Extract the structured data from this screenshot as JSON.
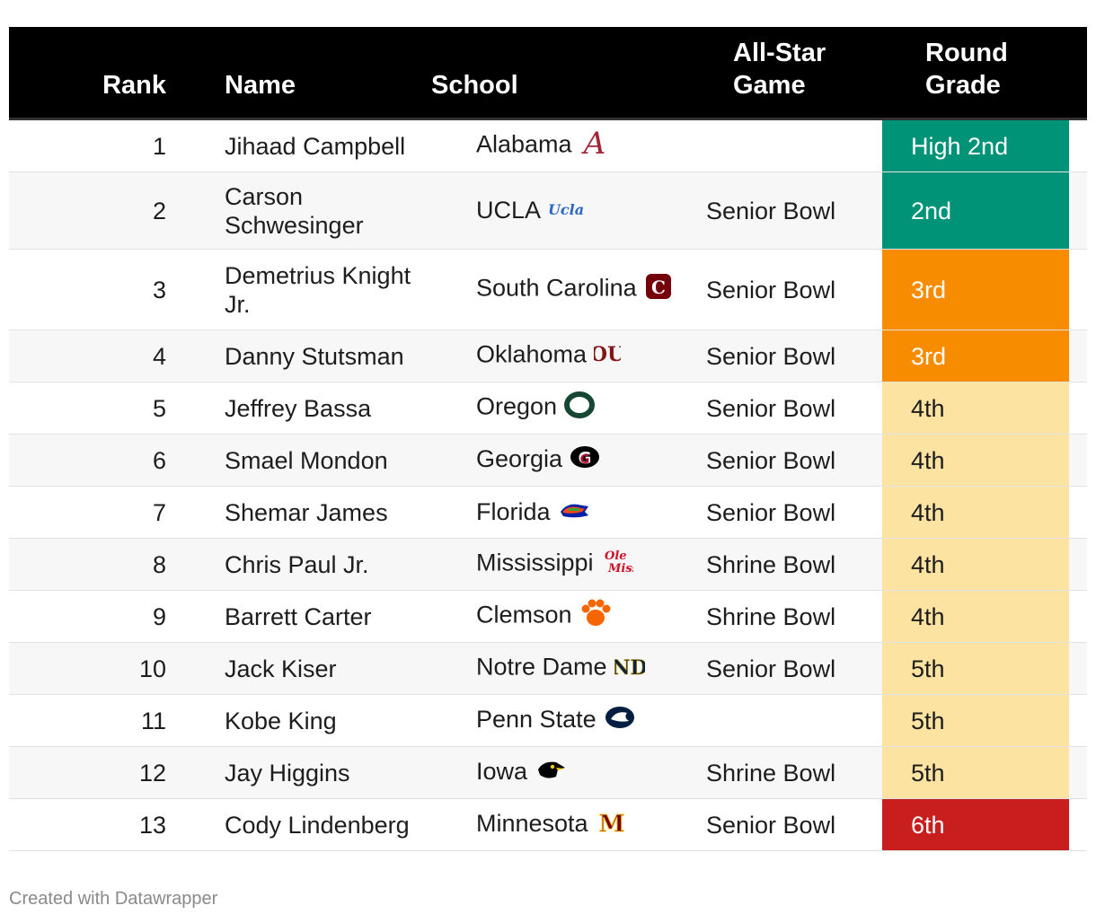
{
  "table": {
    "headers": {
      "rank": "Rank",
      "name": "Name",
      "school": "School",
      "game": "All-Star Game",
      "grade": "Round Grade"
    },
    "rows": [
      {
        "rank": "1",
        "name": "Jihaad Campbell",
        "school": "Alabama",
        "logo": "alabama-logo",
        "game": "",
        "grade": "High 2nd"
      },
      {
        "rank": "2",
        "name": "Carson Schwesinger",
        "school": "UCLA",
        "logo": "ucla-logo",
        "game": "Senior Bowl",
        "grade": "2nd"
      },
      {
        "rank": "3",
        "name": "Demetrius Knight Jr.",
        "school": "South Carolina",
        "logo": "south-carolina-logo",
        "game": "Senior Bowl",
        "grade": "3rd"
      },
      {
        "rank": "4",
        "name": "Danny Stutsman",
        "school": "Oklahoma",
        "logo": "oklahoma-logo",
        "game": "Senior Bowl",
        "grade": "3rd"
      },
      {
        "rank": "5",
        "name": "Jeffrey Bassa",
        "school": "Oregon",
        "logo": "oregon-logo",
        "game": "Senior Bowl",
        "grade": "4th"
      },
      {
        "rank": "6",
        "name": "Smael Mondon",
        "school": "Georgia",
        "logo": "georgia-logo",
        "game": "Senior Bowl",
        "grade": "4th"
      },
      {
        "rank": "7",
        "name": "Shemar James",
        "school": "Florida",
        "logo": "florida-logo",
        "game": "Senior Bowl",
        "grade": "4th"
      },
      {
        "rank": "8",
        "name": "Chris Paul Jr.",
        "school": "Mississippi",
        "logo": "ole-miss-logo",
        "game": "Shrine Bowl",
        "grade": "4th"
      },
      {
        "rank": "9",
        "name": "Barrett Carter",
        "school": "Clemson",
        "logo": "clemson-logo",
        "game": "Shrine Bowl",
        "grade": "4th"
      },
      {
        "rank": "10",
        "name": "Jack Kiser",
        "school": "Notre Dame",
        "logo": "notre-dame-logo",
        "game": "Senior Bowl",
        "grade": "5th"
      },
      {
        "rank": "11",
        "name": "Kobe King",
        "school": "Penn State",
        "logo": "penn-state-logo",
        "game": "",
        "grade": "5th"
      },
      {
        "rank": "12",
        "name": "Jay Higgins",
        "school": "Iowa",
        "logo": "iowa-logo",
        "game": "Shrine Bowl",
        "grade": "5th"
      },
      {
        "rank": "13",
        "name": "Cody Lindenberg",
        "school": "Minnesota",
        "logo": "minnesota-logo",
        "game": "Senior Bowl",
        "grade": "6th"
      }
    ]
  },
  "grade_colors": {
    "High 2nd": {
      "bg": "#009378",
      "fg": "#ffffff"
    },
    "2nd": {
      "bg": "#009378",
      "fg": "#ffffff"
    },
    "3rd": {
      "bg": "#f88c00",
      "fg": "#ffffff"
    },
    "4th": {
      "bg": "#fde3a1",
      "fg": "#1d1d1d"
    },
    "5th": {
      "bg": "#fde3a1",
      "fg": "#1d1d1d"
    },
    "6th": {
      "bg": "#c91e1e",
      "fg": "#ffffff"
    }
  },
  "footer": {
    "credit": "Created with Datawrapper"
  }
}
